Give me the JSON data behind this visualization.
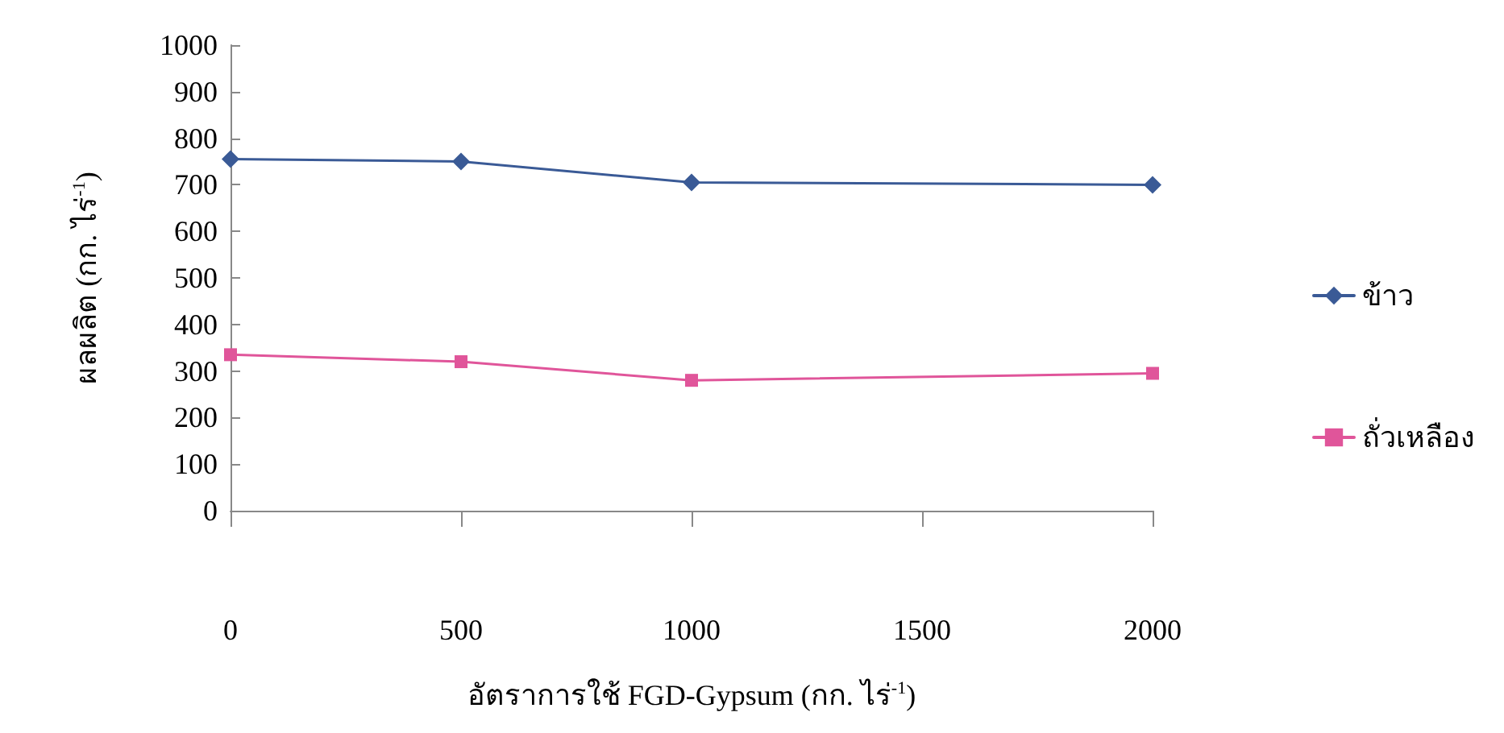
{
  "chart_data": {
    "type": "line",
    "xlabel": "อัตราการใช้ FGD-Gypsum (กก. ไร่$^{-1}$)",
    "ylabel": "ผลผลิต (กก. ไร่$^{-1}$)",
    "x": [
      0,
      500,
      1000,
      2000
    ],
    "series": [
      {
        "name": "ข้าว",
        "color": "#3a5a96",
        "marker": "diamond",
        "values": [
          755,
          750,
          705,
          700
        ]
      },
      {
        "name": "ถั่วเหลือง",
        "color": "#e0559a",
        "marker": "square",
        "values": [
          335,
          320,
          280,
          295
        ]
      }
    ],
    "xlim": [
      0,
      2000
    ],
    "xticks": [
      0,
      500,
      1000,
      1500,
      2000
    ],
    "ylim": [
      0,
      1000
    ],
    "yticks": [
      0,
      100,
      200,
      300,
      400,
      500,
      600,
      700,
      800,
      900,
      1000
    ],
    "grid": false,
    "legend": "right",
    "line_style": "solid"
  }
}
